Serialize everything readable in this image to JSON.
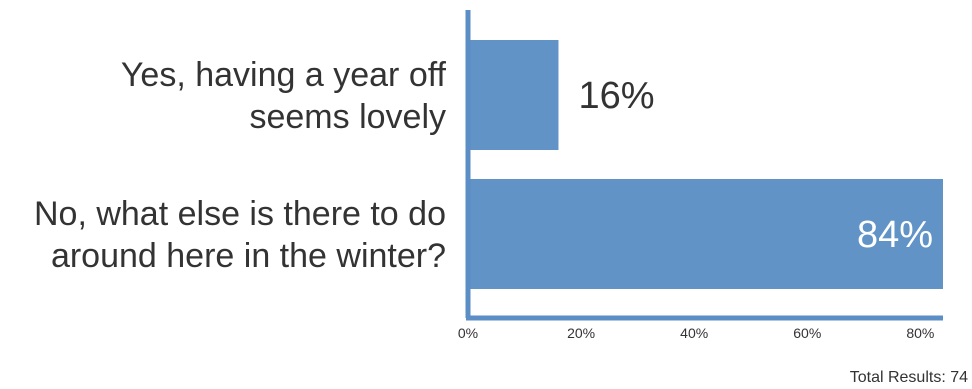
{
  "chart_data": {
    "type": "bar",
    "orientation": "horizontal",
    "categories": [
      [
        "Yes, having a year off",
        "seems lovely"
      ],
      [
        "No, what else is there to do",
        "around here in the winter?"
      ]
    ],
    "values": [
      16,
      84
    ],
    "value_labels": [
      "16%",
      "84%"
    ],
    "xlim": [
      0,
      84
    ],
    "x_ticks": [
      0,
      20,
      40,
      60,
      80
    ],
    "x_tick_labels": [
      "0%",
      "20%",
      "40%",
      "60%",
      "80%"
    ],
    "bar_color": "#6193c6",
    "axis_color": "#5b8ec4",
    "legend": "none",
    "grid": false
  },
  "footer": {
    "total_results": "Total Results: 74"
  }
}
